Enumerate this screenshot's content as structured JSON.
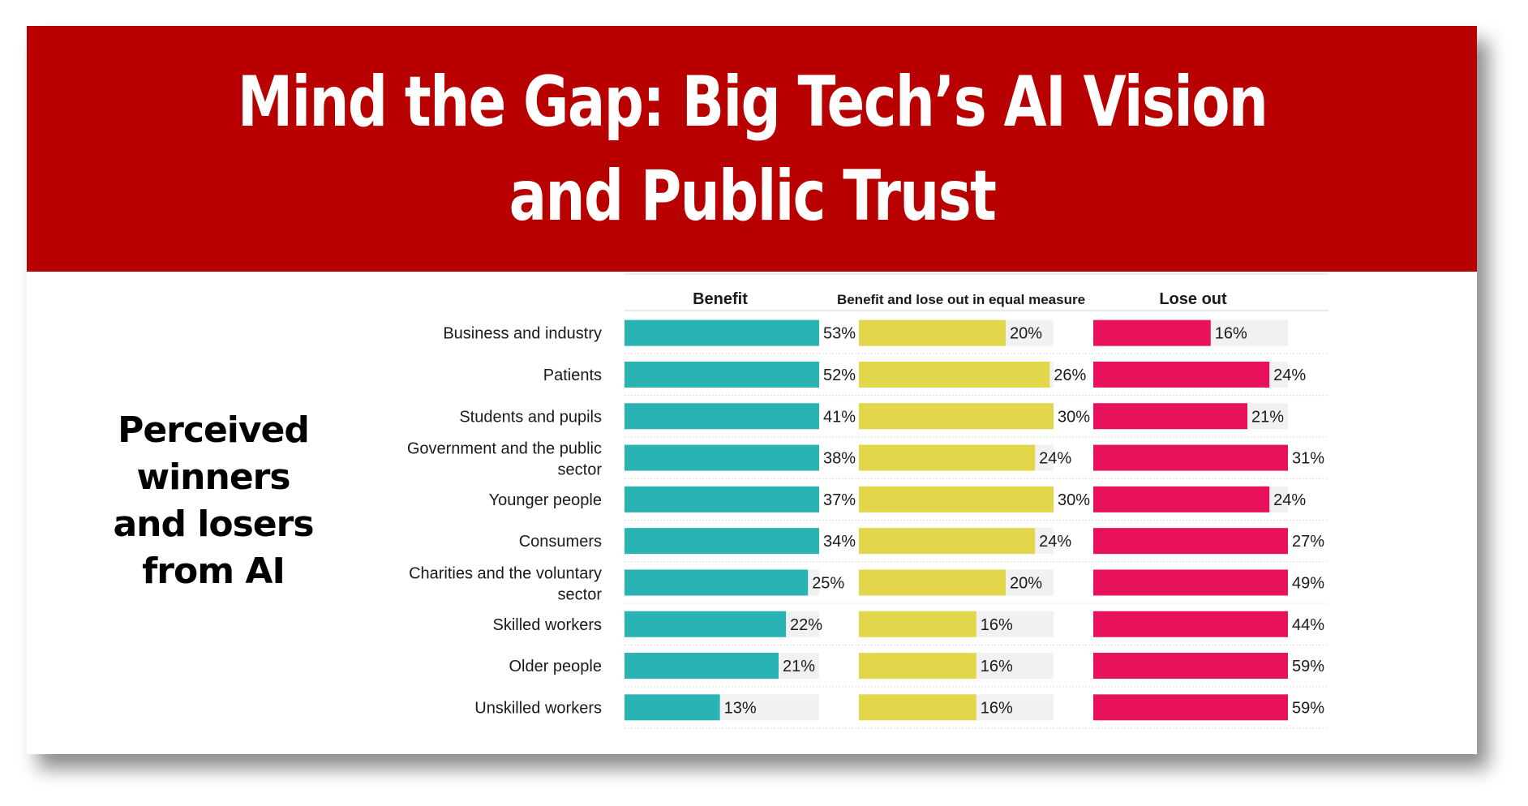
{
  "title_lines": [
    "Mind the Gap: Big Tech’s AI Vision",
    "and Public Trust"
  ],
  "side_title_lines": [
    "Perceived",
    "winners",
    "and losers",
    "from AI"
  ],
  "colors": {
    "banner": "#b90000",
    "benefit": "#2ab3b3",
    "equal": "#e2d64a",
    "lose": "#e8115b",
    "track": "#f1f1f1"
  },
  "chart_data": {
    "type": "bar",
    "categories": [
      "Business and industry",
      "Patients",
      "Students and pupils",
      "Government and the public sector",
      "Younger people",
      "Consumers",
      "Charities and the voluntary sector",
      "Skilled workers",
      "Older people",
      "Unskilled workers"
    ],
    "series": [
      {
        "name": "Benefit",
        "values": [
          53,
          52,
          41,
          38,
          37,
          34,
          25,
          22,
          21,
          13
        ]
      },
      {
        "name": "Benefit and lose out in equal measure",
        "values": [
          20,
          26,
          30,
          24,
          30,
          24,
          20,
          16,
          16,
          16
        ]
      },
      {
        "name": "Lose out",
        "values": [
          16,
          24,
          21,
          31,
          24,
          27,
          49,
          44,
          59,
          59
        ]
      }
    ],
    "value_suffix": "%",
    "ylim": [
      0,
      100
    ],
    "grid": false
  }
}
